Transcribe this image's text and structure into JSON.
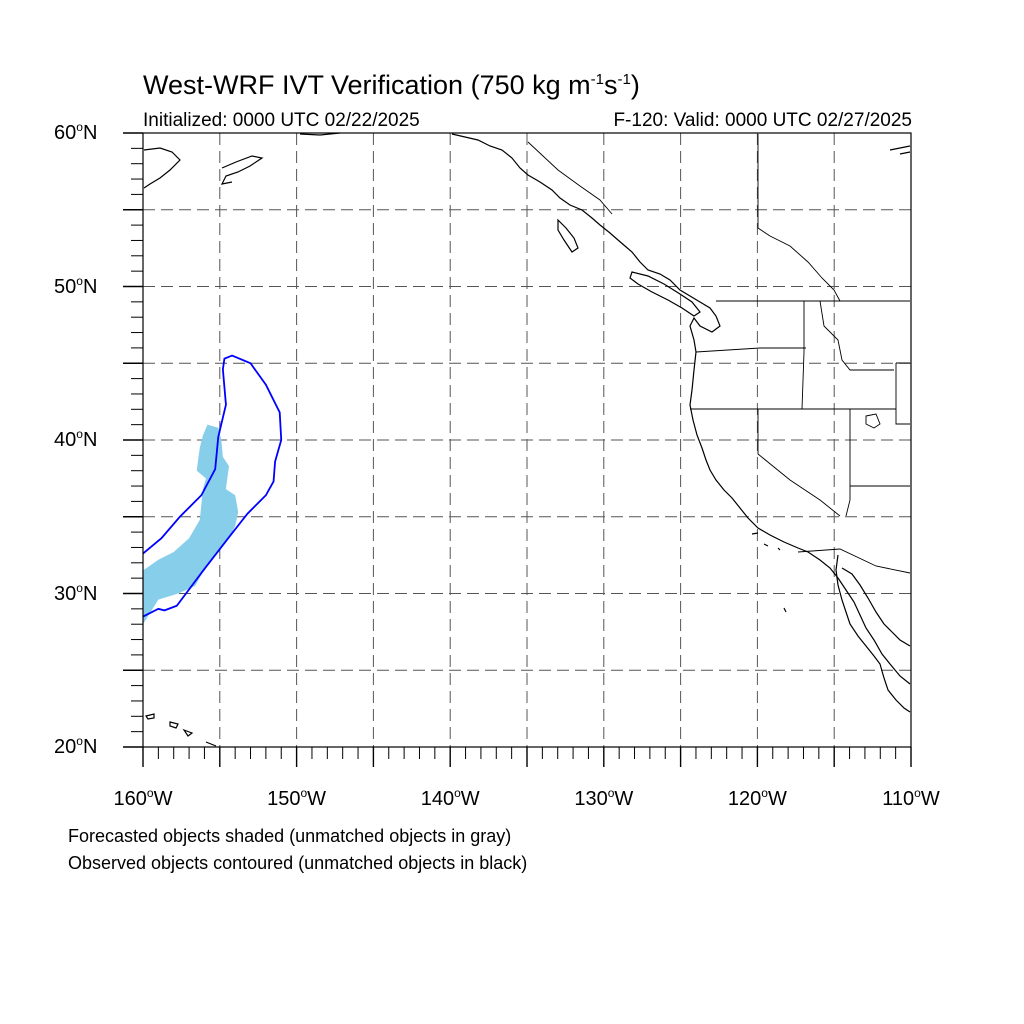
{
  "title": {
    "main": "West-WRF IVT Verification (750 kg m",
    "exp1": "-1",
    "mid": "s",
    "exp2": "-1",
    "end": ")"
  },
  "subtitle": {
    "left": "Initialized: 0000 UTC 02/22/2025",
    "right": "F-120: Valid: 0000 UTC 02/27/2025"
  },
  "map": {
    "projection": "cylindrical equidistant",
    "lon_range": [
      -160,
      -110
    ],
    "lat_range": [
      20,
      60
    ],
    "grid_spacing_deg": 5,
    "grid_style": "dashed",
    "lat_labels": [
      {
        "value": 60,
        "num": "60",
        "deg": "o",
        "hemi": "N"
      },
      {
        "value": 50,
        "num": "50",
        "deg": "o",
        "hemi": "N"
      },
      {
        "value": 40,
        "num": "40",
        "deg": "o",
        "hemi": "N"
      },
      {
        "value": 30,
        "num": "30",
        "deg": "o",
        "hemi": "N"
      },
      {
        "value": 20,
        "num": "20",
        "deg": "o",
        "hemi": "N"
      }
    ],
    "lon_labels": [
      {
        "value": -160,
        "num": "160",
        "deg": "o",
        "hemi": "W"
      },
      {
        "value": -150,
        "num": "150",
        "deg": "o",
        "hemi": "W"
      },
      {
        "value": -140,
        "num": "140",
        "deg": "o",
        "hemi": "W"
      },
      {
        "value": -130,
        "num": "130",
        "deg": "o",
        "hemi": "W"
      },
      {
        "value": -120,
        "num": "120",
        "deg": "o",
        "hemi": "W"
      },
      {
        "value": -110,
        "num": "110",
        "deg": "o",
        "hemi": "W"
      }
    ]
  },
  "forecast_object": {
    "color": "#87ceeb",
    "polygon_lonlat": [
      [
        -160.0,
        31.5
      ],
      [
        -159.0,
        32.2
      ],
      [
        -158.0,
        32.7
      ],
      [
        -157.0,
        33.6
      ],
      [
        -156.3,
        34.8
      ],
      [
        -156.2,
        35.8
      ],
      [
        -156.1,
        36.8
      ],
      [
        -155.9,
        37.5
      ],
      [
        -156.5,
        38.0
      ],
      [
        -156.4,
        38.8
      ],
      [
        -156.3,
        39.5
      ],
      [
        -156.1,
        40.3
      ],
      [
        -155.8,
        41.0
      ],
      [
        -155.1,
        40.8
      ],
      [
        -154.9,
        40.0
      ],
      [
        -154.8,
        38.9
      ],
      [
        -154.4,
        38.3
      ],
      [
        -154.5,
        37.6
      ],
      [
        -154.6,
        36.8
      ],
      [
        -154.0,
        36.4
      ],
      [
        -153.8,
        35.3
      ],
      [
        -154.0,
        34.4
      ],
      [
        -154.4,
        33.6
      ],
      [
        -155.2,
        32.6
      ],
      [
        -156.0,
        31.6
      ],
      [
        -156.6,
        30.5
      ],
      [
        -157.7,
        30.0
      ],
      [
        -159.0,
        29.6
      ],
      [
        -160.0,
        28.0
      ]
    ]
  },
  "observed_object": {
    "color": "#0000ff",
    "polyline_lonlat": [
      [
        -160.0,
        32.6
      ],
      [
        -158.8,
        33.6
      ],
      [
        -157.6,
        35.0
      ],
      [
        -156.2,
        36.4
      ],
      [
        -155.3,
        38.1
      ],
      [
        -155.1,
        40.2
      ],
      [
        -154.6,
        42.3
      ],
      [
        -154.8,
        44.6
      ],
      [
        -154.7,
        45.3
      ],
      [
        -154.2,
        45.5
      ],
      [
        -153.0,
        45.0
      ],
      [
        -152.0,
        43.6
      ],
      [
        -151.1,
        41.8
      ],
      [
        -151.0,
        40.0
      ],
      [
        -151.4,
        38.6
      ],
      [
        -151.5,
        37.3
      ],
      [
        -152.0,
        36.4
      ],
      [
        -153.2,
        35.2
      ],
      [
        -154.3,
        33.8
      ],
      [
        -156.0,
        31.6
      ],
      [
        -157.8,
        29.2
      ],
      [
        -158.6,
        28.9
      ],
      [
        -159.0,
        29.0
      ],
      [
        -160.0,
        28.5
      ]
    ]
  },
  "notes": {
    "line1": "Forecasted objects shaded (unmatched objects in gray)",
    "line2": "Observed objects contoured (unmatched objects in black)"
  }
}
